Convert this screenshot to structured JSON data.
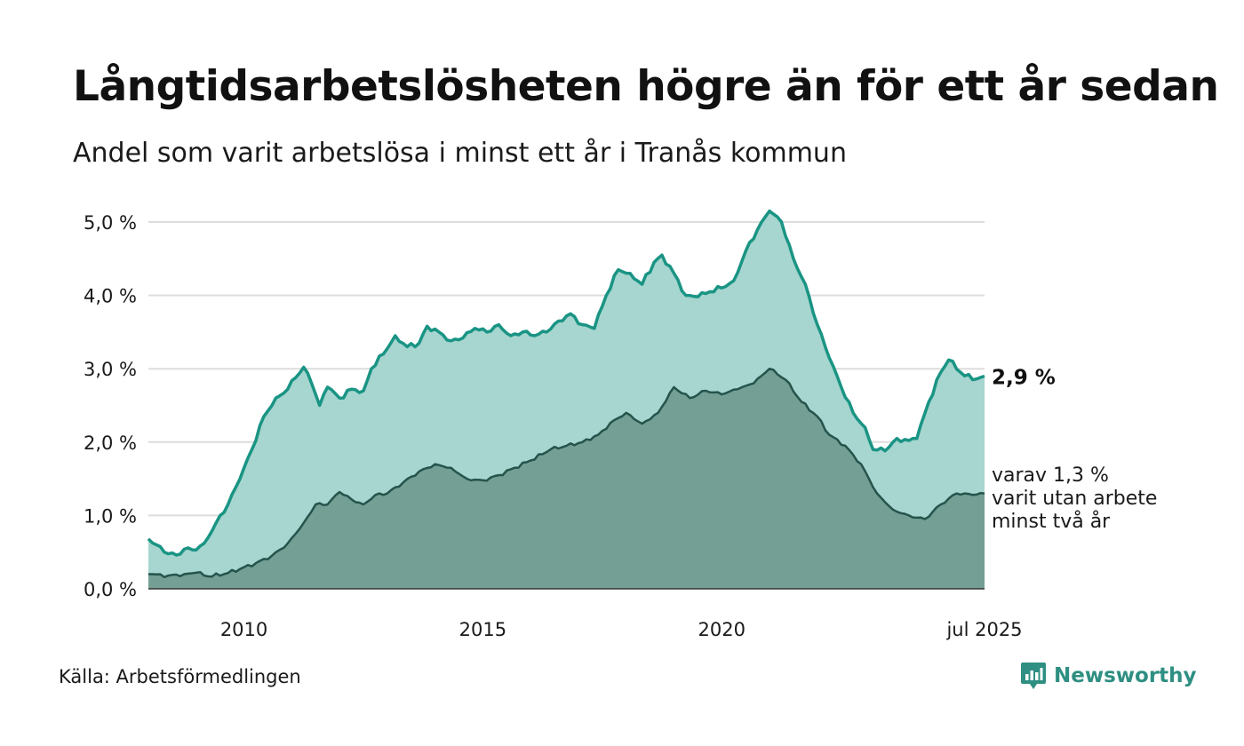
{
  "title": "Långtidsarbetslösheten högre än för ett år sedan",
  "subtitle": "Andel som varit arbetslösa i minst ett år i Tranås kommun",
  "source": "Källa: Arbetsförmedlingen",
  "brand": {
    "name": "Newsworthy",
    "icon": "bar-chart-icon"
  },
  "colors": {
    "series1_fill": "#a6d6cf",
    "series1_line": "#1a9484",
    "series2_fill": "#739f95",
    "series2_line": "#25544c",
    "grid": "#dddddd",
    "brand": "#2e8f82"
  },
  "chart_data": {
    "type": "area",
    "x_start": "2008-01",
    "x_end": "2025-07",
    "x_interval": "month",
    "ylim": [
      0,
      5.2
    ],
    "yticks": [
      0,
      1,
      2,
      3,
      4,
      5
    ],
    "ytick_labels": [
      "0,0 %",
      "1,0 %",
      "2,0 %",
      "3,0 %",
      "4,0 %",
      "5,0 %"
    ],
    "xticks": [
      {
        "date": "2010-01",
        "label": "2010"
      },
      {
        "date": "2015-01",
        "label": "2015"
      },
      {
        "date": "2020-01",
        "label": "2020"
      },
      {
        "date": "2025-07",
        "label": "jul 2025"
      }
    ],
    "grid": true,
    "series": [
      {
        "key": "total",
        "end_label": "2,9 %",
        "anchors": [
          [
            "2008-01",
            0.68
          ],
          [
            "2008-03",
            0.6
          ],
          [
            "2008-05",
            0.5
          ],
          [
            "2008-08",
            0.46
          ],
          [
            "2008-10",
            0.54
          ],
          [
            "2009-01",
            0.53
          ],
          [
            "2009-03",
            0.62
          ],
          [
            "2009-06",
            0.9
          ],
          [
            "2009-09",
            1.15
          ],
          [
            "2009-12",
            1.5
          ],
          [
            "2010-03",
            1.9
          ],
          [
            "2010-06",
            2.35
          ],
          [
            "2010-09",
            2.6
          ],
          [
            "2010-12",
            2.72
          ],
          [
            "2011-02",
            2.88
          ],
          [
            "2011-04",
            3.02
          ],
          [
            "2011-06",
            2.8
          ],
          [
            "2011-08",
            2.5
          ],
          [
            "2011-10",
            2.75
          ],
          [
            "2012-01",
            2.6
          ],
          [
            "2012-04",
            2.72
          ],
          [
            "2012-07",
            2.7
          ],
          [
            "2012-09",
            3.0
          ],
          [
            "2012-12",
            3.2
          ],
          [
            "2013-03",
            3.45
          ],
          [
            "2013-06",
            3.3
          ],
          [
            "2013-09",
            3.35
          ],
          [
            "2013-11",
            3.58
          ],
          [
            "2014-02",
            3.5
          ],
          [
            "2014-05",
            3.38
          ],
          [
            "2014-08",
            3.42
          ],
          [
            "2014-11",
            3.55
          ],
          [
            "2015-02",
            3.5
          ],
          [
            "2015-05",
            3.6
          ],
          [
            "2015-08",
            3.45
          ],
          [
            "2015-11",
            3.5
          ],
          [
            "2016-02",
            3.45
          ],
          [
            "2016-05",
            3.5
          ],
          [
            "2016-08",
            3.65
          ],
          [
            "2016-11",
            3.75
          ],
          [
            "2017-02",
            3.6
          ],
          [
            "2017-05",
            3.55
          ],
          [
            "2017-08",
            4.0
          ],
          [
            "2017-11",
            4.35
          ],
          [
            "2018-02",
            4.3
          ],
          [
            "2018-05",
            4.15
          ],
          [
            "2018-08",
            4.45
          ],
          [
            "2018-10",
            4.55
          ],
          [
            "2019-01",
            4.3
          ],
          [
            "2019-04",
            4.0
          ],
          [
            "2019-07",
            3.98
          ],
          [
            "2019-10",
            4.05
          ],
          [
            "2020-01",
            4.1
          ],
          [
            "2020-04",
            4.2
          ],
          [
            "2020-07",
            4.6
          ],
          [
            "2020-10",
            4.9
          ],
          [
            "2021-01",
            5.15
          ],
          [
            "2021-04",
            5.0
          ],
          [
            "2021-07",
            4.5
          ],
          [
            "2021-10",
            4.15
          ],
          [
            "2022-01",
            3.6
          ],
          [
            "2022-04",
            3.15
          ],
          [
            "2022-07",
            2.75
          ],
          [
            "2022-10",
            2.4
          ],
          [
            "2023-01",
            2.2
          ],
          [
            "2023-03",
            1.9
          ],
          [
            "2023-06",
            1.88
          ],
          [
            "2023-09",
            2.05
          ],
          [
            "2023-12",
            2.02
          ],
          [
            "2024-02",
            2.05
          ],
          [
            "2024-05",
            2.55
          ],
          [
            "2024-08",
            2.95
          ],
          [
            "2024-10",
            3.12
          ],
          [
            "2025-01",
            2.95
          ],
          [
            "2025-04",
            2.85
          ],
          [
            "2025-07",
            2.9
          ]
        ]
      },
      {
        "key": "over_two_years",
        "end_label_lines": [
          "varav 1,3 %",
          "varit utan arbete",
          "minst två år"
        ],
        "anchors": [
          [
            "2008-01",
            0.2
          ],
          [
            "2008-06",
            0.18
          ],
          [
            "2008-10",
            0.2
          ],
          [
            "2009-01",
            0.22
          ],
          [
            "2009-04",
            0.17
          ],
          [
            "2009-08",
            0.2
          ],
          [
            "2009-12",
            0.27
          ],
          [
            "2010-04",
            0.35
          ],
          [
            "2010-08",
            0.45
          ],
          [
            "2010-12",
            0.62
          ],
          [
            "2011-04",
            0.9
          ],
          [
            "2011-07",
            1.15
          ],
          [
            "2011-10",
            1.15
          ],
          [
            "2012-01",
            1.32
          ],
          [
            "2012-04",
            1.22
          ],
          [
            "2012-07",
            1.15
          ],
          [
            "2012-10",
            1.28
          ],
          [
            "2013-01",
            1.3
          ],
          [
            "2013-05",
            1.45
          ],
          [
            "2013-09",
            1.6
          ],
          [
            "2014-01",
            1.7
          ],
          [
            "2014-05",
            1.65
          ],
          [
            "2014-09",
            1.5
          ],
          [
            "2015-01",
            1.48
          ],
          [
            "2015-05",
            1.55
          ],
          [
            "2015-09",
            1.65
          ],
          [
            "2016-01",
            1.75
          ],
          [
            "2016-06",
            1.9
          ],
          [
            "2016-10",
            1.95
          ],
          [
            "2017-02",
            2.0
          ],
          [
            "2017-06",
            2.1
          ],
          [
            "2017-10",
            2.3
          ],
          [
            "2018-01",
            2.4
          ],
          [
            "2018-05",
            2.25
          ],
          [
            "2018-09",
            2.4
          ],
          [
            "2019-01",
            2.75
          ],
          [
            "2019-05",
            2.6
          ],
          [
            "2019-09",
            2.7
          ],
          [
            "2020-01",
            2.65
          ],
          [
            "2020-05",
            2.72
          ],
          [
            "2020-09",
            2.8
          ],
          [
            "2021-01",
            3.0
          ],
          [
            "2021-05",
            2.85
          ],
          [
            "2021-09",
            2.55
          ],
          [
            "2022-01",
            2.35
          ],
          [
            "2022-04",
            2.1
          ],
          [
            "2022-08",
            1.95
          ],
          [
            "2022-12",
            1.7
          ],
          [
            "2023-04",
            1.3
          ],
          [
            "2023-08",
            1.08
          ],
          [
            "2023-12",
            1.0
          ],
          [
            "2024-04",
            0.95
          ],
          [
            "2024-08",
            1.15
          ],
          [
            "2024-12",
            1.3
          ],
          [
            "2025-04",
            1.28
          ],
          [
            "2025-07",
            1.3
          ]
        ]
      }
    ]
  }
}
